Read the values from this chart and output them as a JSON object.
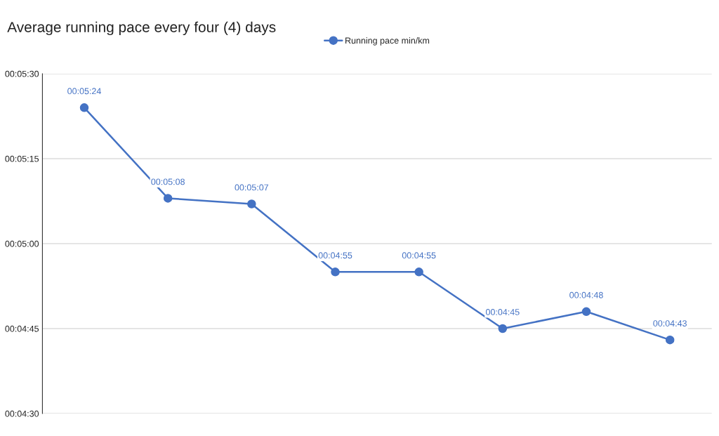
{
  "chart_data": {
    "type": "line",
    "title": "Average running pace every four (4) days",
    "categories": [
      null,
      null,
      null,
      null,
      null,
      null,
      null,
      null
    ],
    "series": [
      {
        "name": "Running pace min/km",
        "color": "#4472c4",
        "values": [
          324,
          308,
          307,
          295,
          295,
          285,
          288,
          283
        ],
        "value_labels": [
          "00:05:24",
          "00:05:08",
          "00:05:07",
          "00:04:55",
          "00:04:55",
          "00:04:45",
          "00:04:48",
          "00:04:43"
        ]
      }
    ],
    "ylim": [
      270,
      330
    ],
    "yticks": [
      {
        "value": 270,
        "label": "00:04:30"
      },
      {
        "value": 285,
        "label": "00:04:45"
      },
      {
        "value": 300,
        "label": "00:05:00"
      },
      {
        "value": 315,
        "label": "00:05:15"
      },
      {
        "value": 330,
        "label": "00:05:30"
      }
    ],
    "grid": "y",
    "legend": "top",
    "marker": "circle",
    "line_style": "solid"
  }
}
